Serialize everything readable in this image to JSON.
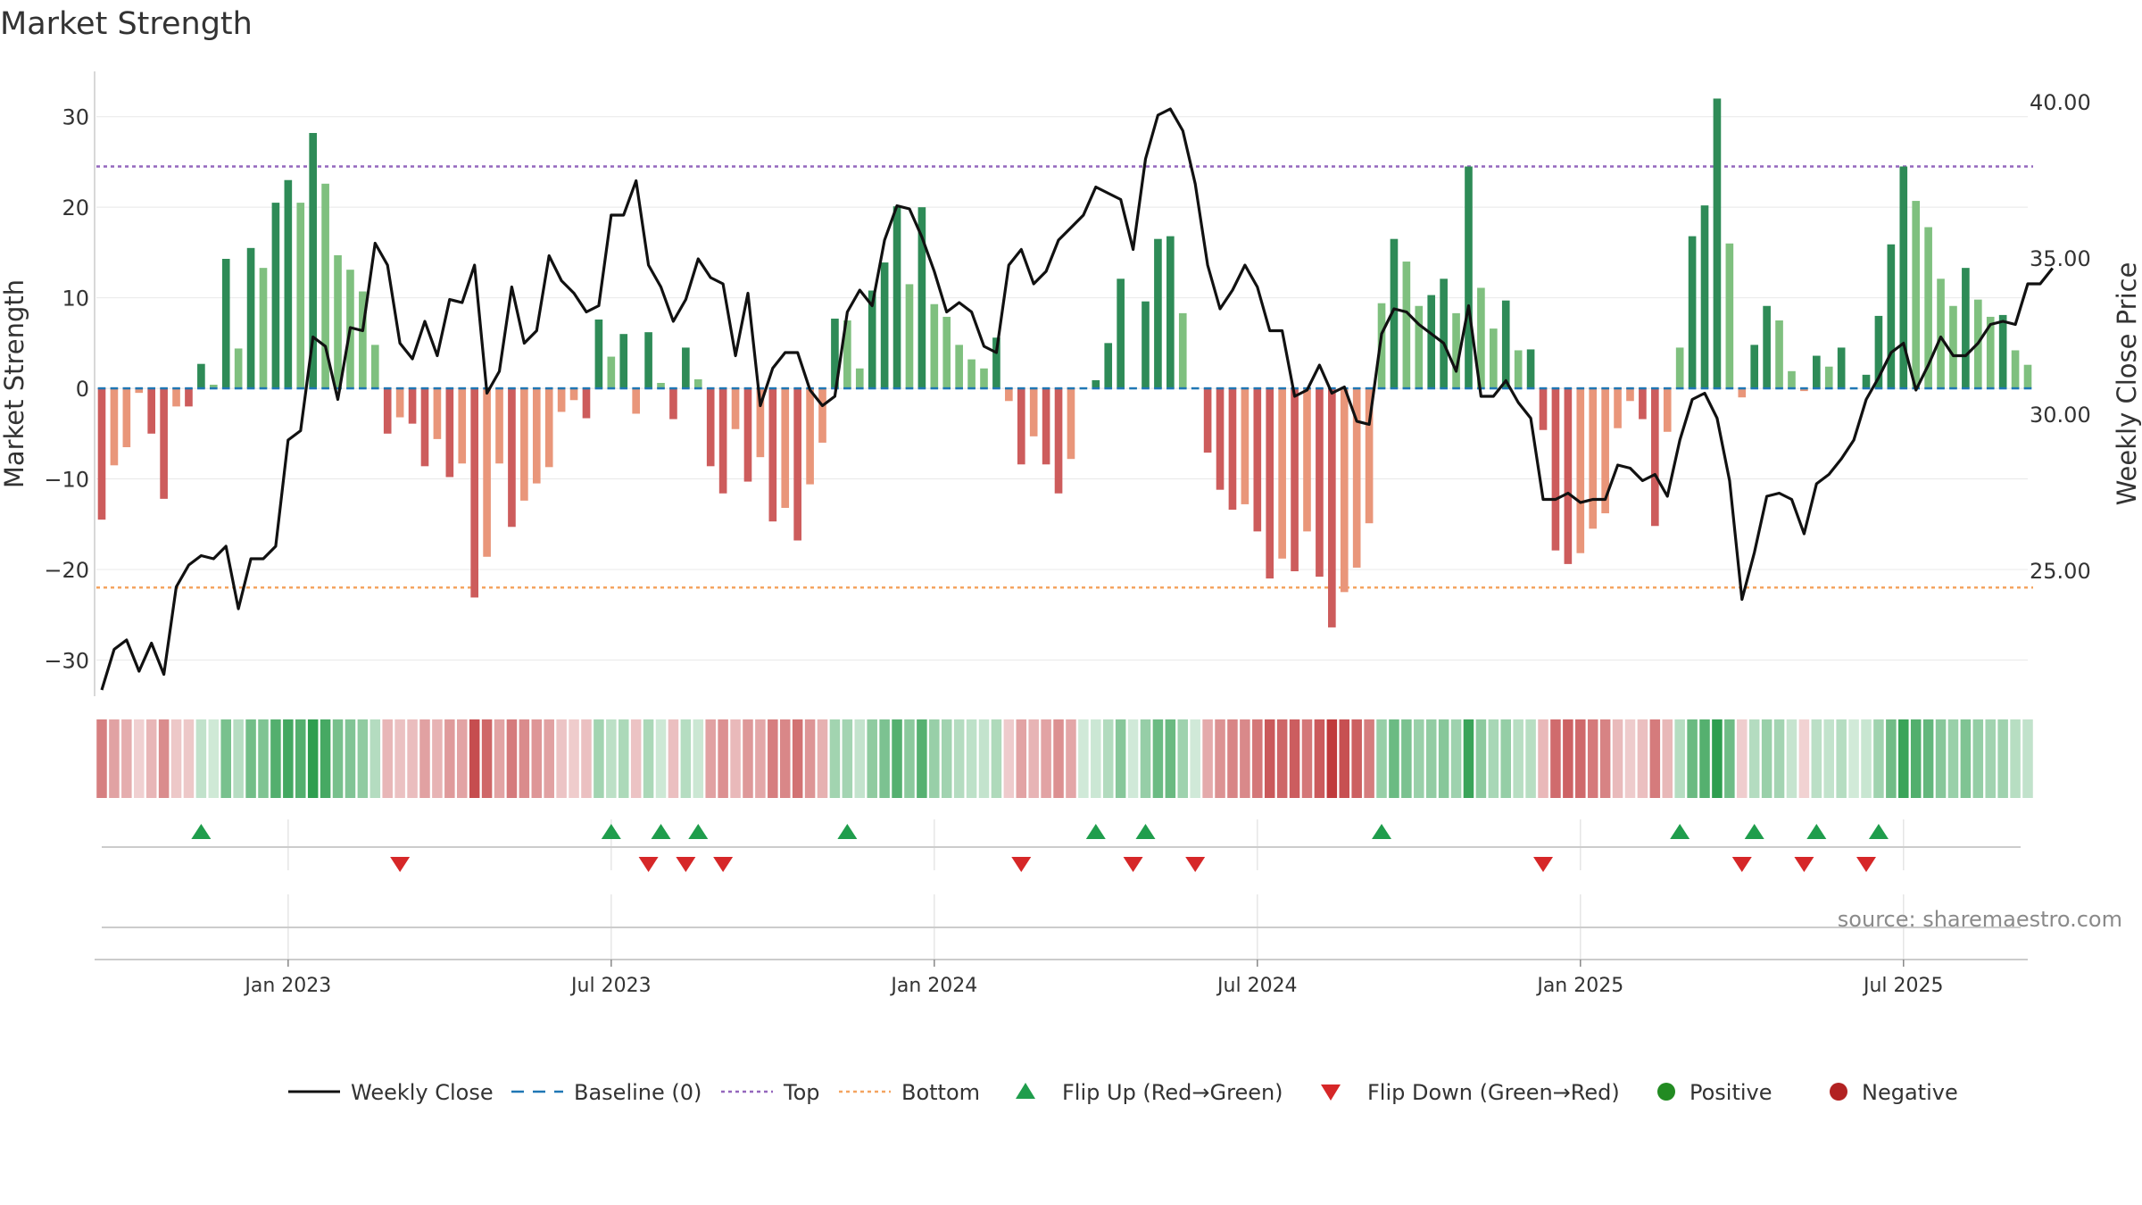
{
  "colors": {
    "pos_strong": "#2e8b57",
    "pos_weak": "#7fc07f",
    "neg_strong": "#cd5c5c",
    "neg_weak": "#e9967a",
    "close_line": "#111111",
    "baseline": "#1f77b4",
    "top_line": "#9467bd",
    "bottom_line": "#f4a460",
    "flip_up": "#1f9d4c",
    "flip_down": "#d62728",
    "positive_dot": "#228b22",
    "negative_dot": "#b22222",
    "grid": "#e8e8e8"
  },
  "chart_data": {
    "type": "bar",
    "title": "Market Strength",
    "ylabel_left": "Market Strength",
    "ylabel_right": "Weekly Close Price",
    "source": "source: sharemaestro.com",
    "left_ylim": [
      -34,
      35
    ],
    "right_ylim": [
      21,
      41
    ],
    "left_yticks": [
      -30,
      -20,
      -10,
      0,
      10,
      20,
      30
    ],
    "left_ytick_labels": [
      "−30",
      "−20",
      "−10",
      "0",
      "10",
      "20",
      "30"
    ],
    "right_yticks": [
      25,
      30,
      35,
      40
    ],
    "right_ytick_labels": [
      "25.00",
      "30.00",
      "35.00",
      "40.00"
    ],
    "x_tick_weeks": [
      15,
      41,
      67,
      93,
      119,
      145
    ],
    "x_tick_labels": [
      "Jan 2023",
      "Jul 2023",
      "Jan 2024",
      "Jul 2024",
      "Jan 2025",
      "Jul 2025"
    ],
    "top_threshold": 24.5,
    "bottom_threshold": -22,
    "baseline": 0,
    "strength": [
      -14.5,
      -8.5,
      -6.5,
      -0.5,
      -5,
      -12.2,
      -2,
      -2,
      2.7,
      0.4,
      14.3,
      4.4,
      15.5,
      13.3,
      20.5,
      23,
      20.5,
      28.2,
      22.6,
      14.7,
      13.1,
      10.7,
      4.8,
      -5,
      -3.2,
      -3.9,
      -8.6,
      -5.6,
      -9.8,
      -8.3,
      -23.1,
      -18.6,
      -8.3,
      -15.3,
      -12.4,
      -10.5,
      -8.7,
      -2.6,
      -1.3,
      -3.3,
      7.6,
      3.5,
      6,
      -2.8,
      6.2,
      0.6,
      -3.4,
      4.5,
      1,
      -8.6,
      -11.6,
      -4.5,
      -10.3,
      -7.6,
      -14.7,
      -13.2,
      -16.8,
      -10.6,
      -6,
      7.7,
      7.5,
      2.2,
      10.8,
      13.9,
      20.1,
      11.5,
      20,
      9.3,
      7.9,
      4.8,
      3.2,
      2.2,
      5.6,
      -1.4,
      -8.4,
      -5.3,
      -8.4,
      -11.6,
      -7.8,
      0.1,
      0.9,
      5,
      12.1,
      0.1,
      9.6,
      16.5,
      16.8,
      8.3,
      0.1,
      -7.1,
      -11.2,
      -13.4,
      -12.8,
      -15.8,
      -21,
      -18.8,
      -20.2,
      -15.8,
      -20.8,
      -26.4,
      -22.5,
      -19.8,
      -14.9,
      9.4,
      16.5,
      14,
      9.1,
      10.3,
      12.1,
      8.3,
      24.5,
      11.1,
      6.6,
      9.7,
      4.2,
      4.3,
      -4.6,
      -17.9,
      -19.4,
      -18.2,
      -15.5,
      -13.8,
      -4.4,
      -1.4,
      -3.4,
      -15.2,
      -4.8,
      4.5,
      16.8,
      20.2,
      32,
      16,
      -1,
      4.8,
      9.1,
      7.5,
      1.9,
      -0.3,
      3.6,
      2.4,
      4.5,
      0,
      1.5,
      8,
      15.9,
      24.5,
      20.7,
      17.8,
      12.1,
      9.1,
      13.3,
      9.8,
      7.9,
      8.1,
      4.2,
      2.6
    ],
    "weekly_close": [
      21.2,
      22.5,
      22.8,
      21.8,
      22.7,
      21.7,
      24.5,
      25.2,
      25.5,
      25.4,
      25.8,
      23.8,
      25.4,
      25.4,
      25.8,
      29.2,
      29.5,
      32.5,
      32.2,
      30.5,
      32.8,
      32.7,
      35.5,
      34.8,
      32.3,
      31.8,
      33.0,
      31.9,
      33.7,
      33.6,
      34.8,
      30.7,
      31.4,
      34.1,
      32.3,
      32.7,
      35.1,
      34.3,
      33.9,
      33.3,
      33.5,
      36.4,
      36.4,
      37.5,
      34.8,
      34.1,
      33.0,
      33.7,
      35.0,
      34.4,
      34.2,
      31.9,
      33.9,
      30.3,
      31.5,
      32.0,
      32.0,
      30.8,
      30.3,
      30.6,
      33.3,
      34.0,
      33.5,
      35.6,
      36.7,
      36.6,
      35.7,
      34.6,
      33.3,
      33.6,
      33.3,
      32.2,
      32.0,
      34.8,
      35.3,
      34.2,
      34.6,
      35.6,
      36.0,
      36.4,
      37.3,
      37.1,
      36.9,
      35.3,
      38.2,
      39.6,
      39.8,
      39.1,
      37.4,
      34.8,
      33.4,
      34.0,
      34.8,
      34.1,
      32.7,
      32.7,
      30.6,
      30.8,
      31.6,
      30.7,
      30.9,
      29.8,
      29.7,
      32.6,
      33.4,
      33.3,
      32.9,
      32.6,
      32.3,
      31.4,
      33.5,
      30.6,
      30.6,
      31.1,
      30.4,
      29.9,
      27.3,
      27.3,
      27.5,
      27.2,
      27.3,
      27.3,
      28.4,
      28.3,
      27.9,
      28.1,
      27.4,
      29.2,
      30.5,
      30.7,
      29.9,
      27.9,
      24.1,
      25.6,
      27.4,
      27.5,
      27.3,
      26.2,
      27.8,
      28.1,
      28.6,
      29.2,
      30.5,
      31.2,
      32.0,
      32.3,
      30.8,
      31.6,
      32.5,
      31.9,
      31.9,
      32.3,
      32.9,
      33.0,
      32.9,
      34.2,
      34.2,
      34.7
    ],
    "flip_up_weeks": [
      8,
      41,
      45,
      48,
      60,
      80,
      84,
      103,
      127,
      133,
      138,
      143
    ],
    "flip_down_weeks": [
      24,
      44,
      47,
      50,
      74,
      83,
      88,
      116,
      132,
      137,
      142
    ]
  },
  "legend": {
    "items": [
      {
        "label": "Weekly Close",
        "kind": "line"
      },
      {
        "label": "Baseline (0)",
        "kind": "dash"
      },
      {
        "label": "Top",
        "kind": "dot-purple"
      },
      {
        "label": "Bottom",
        "kind": "dot-orange"
      },
      {
        "label": "Flip Up (Red→Green)",
        "kind": "tri-up"
      },
      {
        "label": "Flip Down (Green→Red)",
        "kind": "tri-down"
      },
      {
        "label": "Positive",
        "kind": "dot-green"
      },
      {
        "label": "Negative",
        "kind": "dot-red"
      }
    ]
  }
}
